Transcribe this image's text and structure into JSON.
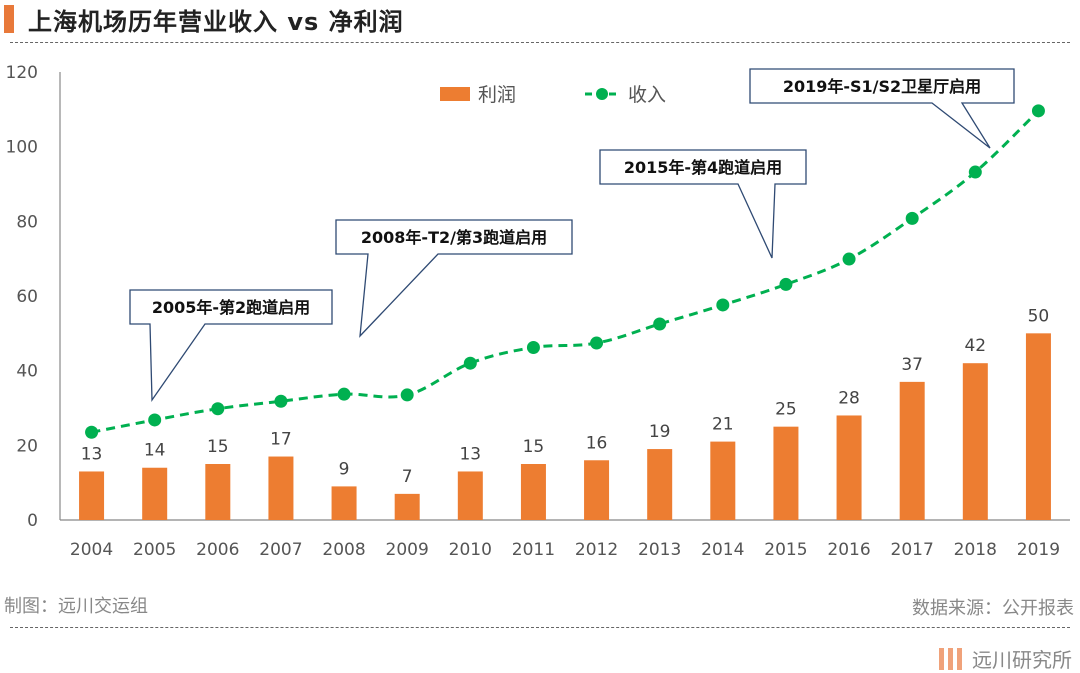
{
  "header": {
    "title": "上海机场历年营业收入 vs 净利润"
  },
  "footer": {
    "made_by": "制图：远川交运组",
    "source": "数据来源：公开报表",
    "brand": "远川研究所"
  },
  "colors": {
    "profit": "#ed7d31",
    "revenue": "#00b050",
    "accent": "#e8793a",
    "callout_border": "#2f4a73"
  },
  "chart_data": {
    "type": "bar",
    "categories": [
      "2004",
      "2005",
      "2006",
      "2007",
      "2008",
      "2009",
      "2010",
      "2011",
      "2012",
      "2013",
      "2014",
      "2015",
      "2016",
      "2017",
      "2018",
      "2019"
    ],
    "ylim": [
      0,
      120
    ],
    "yticks": [
      0,
      20,
      40,
      60,
      80,
      100,
      120
    ],
    "grid": false,
    "legend_position": "top-center",
    "series": [
      {
        "name": "利润",
        "type": "bar",
        "values": [
          13,
          14,
          15,
          17,
          9,
          7,
          13,
          15,
          16,
          19,
          21,
          25,
          28,
          37,
          42,
          50
        ],
        "data_labels": true
      },
      {
        "name": "收入",
        "type": "line",
        "style": "dashed-with-markers",
        "values": [
          23.5,
          26.8,
          29.8,
          31.8,
          33.7,
          33.5,
          42.0,
          46.2,
          47.4,
          52.5,
          57.6,
          63.1,
          69.9,
          80.8,
          93.2,
          109.6
        ]
      }
    ],
    "annotations": [
      {
        "text": "2005年-第2跑道启用",
        "x": "2005"
      },
      {
        "text": "2008年-T2/第3跑道启用",
        "x": "2008"
      },
      {
        "text": "2015年-第4跑道启用",
        "x": "2015"
      },
      {
        "text": "2019年-S1/S2卫星厅启用",
        "x": "2018"
      }
    ]
  }
}
